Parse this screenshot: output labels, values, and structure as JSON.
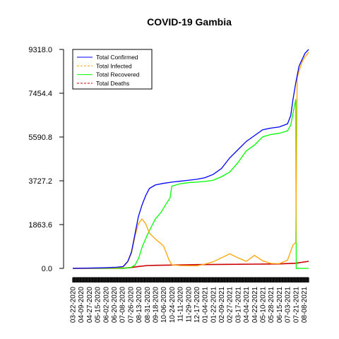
{
  "chart_data": {
    "type": "line",
    "title": "COVID-19 Gambia",
    "xlabel": "",
    "ylabel": "",
    "y_ticks": [
      "0.0",
      "1863.6",
      "3727.2",
      "5590.8",
      "7454.4",
      "9318.0"
    ],
    "ylim": [
      0,
      9318
    ],
    "x_tick_labels": [
      "03-22-2020",
      "04-09-2020",
      "04-27-2020",
      "05-15-2020",
      "06-02-2020",
      "06-20-2020",
      "07-08-2020",
      "07-26-2020",
      "08-13-2020",
      "08-31-2020",
      "09-18-2020",
      "10-06-2020",
      "10-24-2020",
      "11-11-2020",
      "11-29-2020",
      "12-17-2020",
      "01-04-2021",
      "01-22-2021",
      "02-09-2021",
      "02-27-2021",
      "03-17-2021",
      "04-04-2021",
      "04-22-2021",
      "05-10-2021",
      "05-28-2021",
      "06-15-2021",
      "07-03-2021",
      "07-21-2021",
      "08-08-2021"
    ],
    "x_start": "03-22-2020",
    "x_end": "08-18-2021",
    "grid": false,
    "legend_position": "top-left",
    "series": [
      {
        "name": "Total Confirmed",
        "color": "#0000ff",
        "dash": "solid",
        "points": [
          [
            "03-22-2020",
            1
          ],
          [
            "05-01-2020",
            15
          ],
          [
            "06-01-2020",
            30
          ],
          [
            "06-25-2020",
            49
          ],
          [
            "07-10-2020",
            80
          ],
          [
            "07-20-2020",
            300
          ],
          [
            "07-28-2020",
            700
          ],
          [
            "08-05-2020",
            1500
          ],
          [
            "08-12-2020",
            2200
          ],
          [
            "08-20-2020",
            2700
          ],
          [
            "08-28-2020",
            3100
          ],
          [
            "09-05-2020",
            3400
          ],
          [
            "09-18-2020",
            3550
          ],
          [
            "10-06-2020",
            3620
          ],
          [
            "10-24-2020",
            3670
          ],
          [
            "11-11-2020",
            3710
          ],
          [
            "11-29-2020",
            3750
          ],
          [
            "12-17-2020",
            3790
          ],
          [
            "01-04-2021",
            3860
          ],
          [
            "01-22-2021",
            4000
          ],
          [
            "02-09-2021",
            4250
          ],
          [
            "02-27-2021",
            4700
          ],
          [
            "03-17-2021",
            5050
          ],
          [
            "04-04-2021",
            5400
          ],
          [
            "04-22-2021",
            5650
          ],
          [
            "05-10-2021",
            5900
          ],
          [
            "05-28-2021",
            5970
          ],
          [
            "06-15-2021",
            6020
          ],
          [
            "07-03-2021",
            6150
          ],
          [
            "07-10-2021",
            6500
          ],
          [
            "07-15-2021",
            7200
          ],
          [
            "07-21-2021",
            7900
          ],
          [
            "07-28-2021",
            8600
          ],
          [
            "08-04-2021",
            8900
          ],
          [
            "08-10-2021",
            9150
          ],
          [
            "08-18-2021",
            9318
          ]
        ]
      },
      {
        "name": "Total Infected",
        "color": "#ffa500",
        "dash": "dashed",
        "points": [
          [
            "03-22-2020",
            1
          ],
          [
            "06-25-2020",
            30
          ],
          [
            "07-10-2020",
            60
          ],
          [
            "07-20-2020",
            280
          ],
          [
            "07-28-2020",
            650
          ],
          [
            "08-05-2020",
            1400
          ],
          [
            "08-12-2020",
            1900
          ],
          [
            "08-20-2020",
            2100
          ],
          [
            "08-28-2020",
            1900
          ],
          [
            "09-05-2020",
            1500
          ],
          [
            "09-18-2020",
            1250
          ],
          [
            "10-06-2020",
            950
          ],
          [
            "10-18-2020",
            350
          ],
          [
            "10-24-2020",
            150
          ],
          [
            "11-11-2020",
            120
          ],
          [
            "12-17-2020",
            110
          ],
          [
            "01-04-2021",
            180
          ],
          [
            "01-22-2021",
            280
          ],
          [
            "02-09-2021",
            450
          ],
          [
            "02-27-2021",
            620
          ],
          [
            "03-17-2021",
            450
          ],
          [
            "04-04-2021",
            300
          ],
          [
            "04-22-2021",
            550
          ],
          [
            "05-10-2021",
            320
          ],
          [
            "05-28-2021",
            210
          ],
          [
            "06-15-2021",
            200
          ],
          [
            "07-03-2021",
            350
          ],
          [
            "07-15-2021",
            1000
          ],
          [
            "07-21-2021",
            1100
          ],
          [
            "07-24-2021",
            8100
          ],
          [
            "07-28-2021",
            8400
          ],
          [
            "08-04-2021",
            8800
          ],
          [
            "08-10-2021",
            9000
          ],
          [
            "08-18-2021",
            9200
          ]
        ]
      },
      {
        "name": "Total Recovered",
        "color": "#00ff00",
        "dash": "solid",
        "points": [
          [
            "03-22-2020",
            0
          ],
          [
            "07-15-2020",
            10
          ],
          [
            "07-28-2020",
            50
          ],
          [
            "08-05-2020",
            150
          ],
          [
            "08-13-2020",
            450
          ],
          [
            "08-20-2020",
            900
          ],
          [
            "08-31-2020",
            1400
          ],
          [
            "09-10-2020",
            1800
          ],
          [
            "09-18-2020",
            2100
          ],
          [
            "10-01-2020",
            2400
          ],
          [
            "10-10-2020",
            2700
          ],
          [
            "10-20-2020",
            3000
          ],
          [
            "10-24-2020",
            3500
          ],
          [
            "11-11-2020",
            3600
          ],
          [
            "11-29-2020",
            3650
          ],
          [
            "12-17-2020",
            3670
          ],
          [
            "01-04-2021",
            3700
          ],
          [
            "01-22-2021",
            3750
          ],
          [
            "02-09-2021",
            3900
          ],
          [
            "02-27-2021",
            4100
          ],
          [
            "03-17-2021",
            4500
          ],
          [
            "04-04-2021",
            5000
          ],
          [
            "04-22-2021",
            5250
          ],
          [
            "05-10-2021",
            5600
          ],
          [
            "05-28-2021",
            5700
          ],
          [
            "06-15-2021",
            5750
          ],
          [
            "07-03-2021",
            5850
          ],
          [
            "07-10-2021",
            6100
          ],
          [
            "07-15-2021",
            6600
          ],
          [
            "07-21-2021",
            7200
          ],
          [
            "07-22-2021",
            0
          ],
          [
            "08-18-2021",
            0
          ]
        ]
      },
      {
        "name": "Total Deaths",
        "color": "#cc0000",
        "dash": "dashed",
        "points": [
          [
            "03-22-2020",
            0
          ],
          [
            "07-10-2020",
            5
          ],
          [
            "07-28-2020",
            40
          ],
          [
            "08-13-2020",
            80
          ],
          [
            "08-31-2020",
            120
          ],
          [
            "09-18-2020",
            130
          ],
          [
            "10-24-2020",
            140
          ],
          [
            "12-17-2020",
            160
          ],
          [
            "02-27-2021",
            170
          ],
          [
            "04-22-2021",
            180
          ],
          [
            "06-15-2021",
            190
          ],
          [
            "07-21-2021",
            220
          ],
          [
            "08-18-2021",
            300
          ]
        ]
      }
    ]
  }
}
